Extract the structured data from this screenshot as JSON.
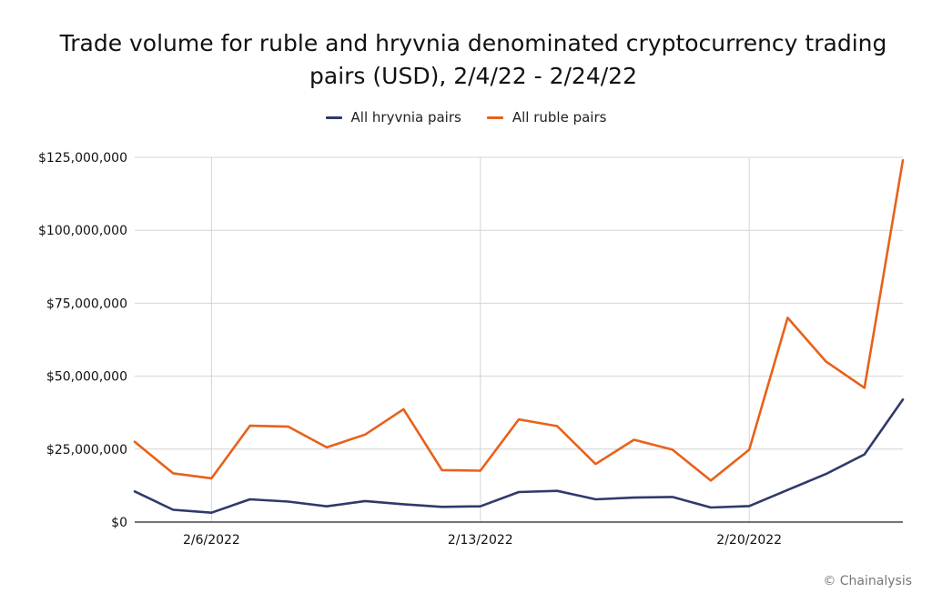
{
  "title_line1": "Trade volume for ruble and hryvnia denominated cryptocurrency trading",
  "title_line2": "pairs (USD), 2/4/22 - 2/24/22",
  "copyright": "© Chainalysis",
  "colors": {
    "hryvnia": "#2f3a6b",
    "ruble": "#e8611a",
    "grid": "#d4d4d4",
    "axis": "#222222"
  },
  "chart_data": {
    "type": "line",
    "title": "Trade volume for ruble and hryvnia denominated cryptocurrency trading pairs (USD), 2/4/22 - 2/24/22",
    "xlabel": "",
    "ylabel": "",
    "x": [
      "2/4/2022",
      "2/5/2022",
      "2/6/2022",
      "2/7/2022",
      "2/8/2022",
      "2/9/2022",
      "2/10/2022",
      "2/11/2022",
      "2/12/2022",
      "2/13/2022",
      "2/14/2022",
      "2/15/2022",
      "2/16/2022",
      "2/17/2022",
      "2/18/2022",
      "2/19/2022",
      "2/20/2022",
      "2/21/2022",
      "2/22/2022",
      "2/23/2022",
      "2/24/2022"
    ],
    "x_tick_labels": [
      {
        "label": "2/6/2022",
        "index": 2
      },
      {
        "label": "2/13/2022",
        "index": 9
      },
      {
        "label": "2/20/2022",
        "index": 16
      }
    ],
    "ylim": [
      0,
      125000000
    ],
    "y_ticks": [
      0,
      25000000,
      50000000,
      75000000,
      100000000,
      125000000
    ],
    "y_tick_labels": [
      "$0",
      "$25,000,000",
      "$50,000,000",
      "$75,000,000",
      "$100,000,000",
      "$125,000,000"
    ],
    "grid": true,
    "legend_position": "top-center",
    "series": [
      {
        "name": "All hryvnia pairs",
        "values": [
          10500000,
          4200000,
          3200000,
          7800000,
          7000000,
          5400000,
          7200000,
          6100000,
          5200000,
          5400000,
          10300000,
          10700000,
          7800000,
          8400000,
          8600000,
          5000000,
          5500000,
          11000000,
          16500000,
          23200000,
          42000000
        ]
      },
      {
        "name": "All ruble pairs",
        "values": [
          27500000,
          16700000,
          15000000,
          33000000,
          32700000,
          25600000,
          30000000,
          38700000,
          17800000,
          17600000,
          35200000,
          32900000,
          19900000,
          28200000,
          24800000,
          14200000,
          24800000,
          70000000,
          55000000,
          46000000,
          124000000
        ]
      }
    ]
  }
}
